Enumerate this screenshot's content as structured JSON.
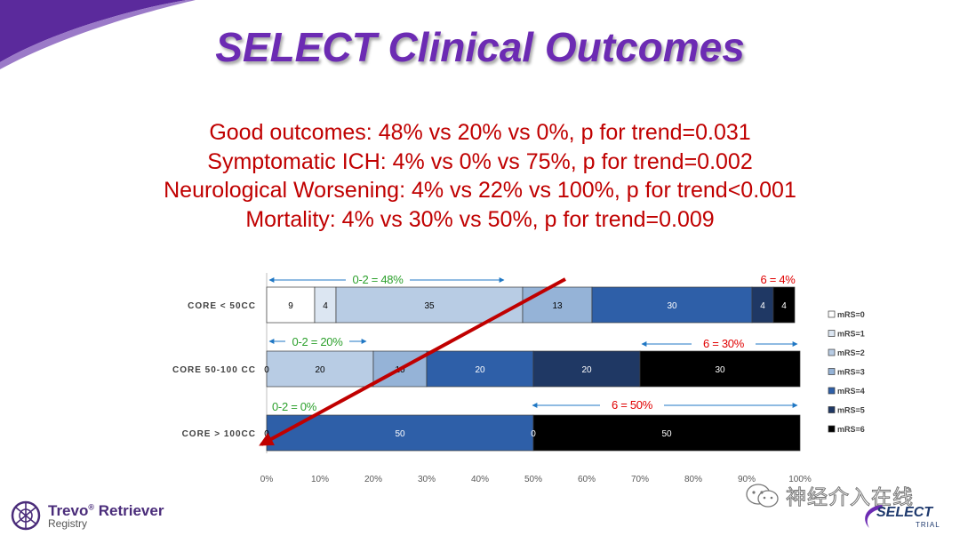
{
  "slide": {
    "title": "SELECT Clinical Outcomes",
    "stats_lines": [
      "Good outcomes: 48% vs 20% vs 0%, p for trend=0.031",
      "Symptomatic ICH: 4% vs 0% vs 75%, p for trend=0.002",
      "Neurological Worsening: 4% vs 22% vs 100%, p for trend<0.001",
      "Mortality: 4% vs 30% vs 50%, p for trend=0.009"
    ],
    "colors": {
      "title": "#6c2bb3",
      "stats": "#c00000",
      "annot_green": "#2ca02c",
      "annot_red": "#e00000",
      "annot_arrow": "#1f77c4",
      "trend_arrow": "#c00000"
    }
  },
  "chart_data": {
    "type": "bar",
    "orientation": "horizontal-stacked",
    "categories": [
      "CORE < 50CC",
      "CORE 50-100 CC",
      "CORE > 100CC"
    ],
    "series": [
      {
        "name": "mRS=0",
        "color": "#ffffff",
        "values": [
          9,
          0,
          0
        ]
      },
      {
        "name": "mRS=1",
        "color": "#dce6f2",
        "values": [
          4,
          0,
          0
        ]
      },
      {
        "name": "mRS=2",
        "color": "#b8cce4",
        "values": [
          35,
          20,
          0
        ]
      },
      {
        "name": "mRS=3",
        "color": "#95b3d7",
        "values": [
          13,
          10,
          0
        ]
      },
      {
        "name": "mRS=4",
        "color": "#2e5fa8",
        "values": [
          30,
          20,
          50
        ]
      },
      {
        "name": "mRS=5",
        "color": "#1f3864",
        "values": [
          4,
          20,
          0
        ]
      },
      {
        "name": "mRS=6",
        "color": "#000000",
        "values": [
          4,
          30,
          50
        ]
      }
    ],
    "segment_labels": [
      [
        "9",
        "4",
        "35",
        "13",
        "30",
        "4",
        "4"
      ],
      [
        "0",
        "20",
        "10",
        "20",
        "20",
        "30"
      ],
      [
        "0",
        "50",
        "0",
        "50"
      ]
    ],
    "x_ticks": [
      "0%",
      "10%",
      "20%",
      "30%",
      "40%",
      "50%",
      "60%",
      "70%",
      "80%",
      "90%",
      "100%"
    ],
    "xlim": [
      0,
      100
    ],
    "grid": false,
    "legend_position": "right",
    "annotations": [
      {
        "text": "0-2 = 48%",
        "color": "green",
        "row": 0,
        "span": [
          0,
          48
        ]
      },
      {
        "text": "6 = 4%",
        "color": "red",
        "row": 0,
        "span": [
          96,
          100
        ]
      },
      {
        "text": "0-2 = 20%",
        "color": "green",
        "row": 1,
        "span": [
          0,
          20
        ]
      },
      {
        "text": "6 = 30%",
        "color": "red",
        "row": 1,
        "span": [
          70,
          100
        ]
      },
      {
        "text": "0-2 = 0%",
        "color": "green",
        "row": 2,
        "span": [
          0,
          0
        ]
      },
      {
        "text": "6 = 50%",
        "color": "red",
        "row": 2,
        "span": [
          50,
          100
        ]
      }
    ]
  },
  "branding": {
    "left_logo_name": "Trevo",
    "left_logo_reg": "®",
    "left_logo_name2": " Retriever",
    "left_logo_sub": "Registry",
    "watermark": "神经介入在线",
    "right_logo_word": "SELECT",
    "right_logo_sub": "TRIAL"
  }
}
